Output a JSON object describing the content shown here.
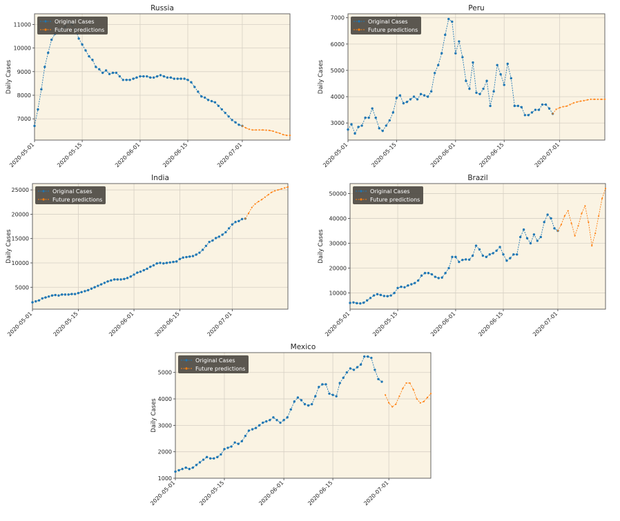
{
  "chart_data": [
    {
      "id": "russia",
      "type": "line",
      "title": "Russia",
      "ylabel": "Daily Cases",
      "xlabel": "",
      "x_start": "2020-05-01",
      "xticks": [
        "2020-05-01",
        "2020-05-15",
        "2020-06-01",
        "2020-06-15",
        "2020-07-01"
      ],
      "yticks": [
        7000,
        8000,
        9000,
        10000,
        11000
      ],
      "ylim": [
        6100,
        11450
      ],
      "grid": true,
      "legend": "top-left",
      "series": [
        {
          "name": "Original Cases",
          "color": "#1f77b4",
          "values": [
            6700,
            7400,
            8250,
            9200,
            9800,
            10350,
            10600,
            10700,
            10800,
            10900,
            11100,
            11000,
            10800,
            10400,
            10150,
            9900,
            9650,
            9500,
            9200,
            9100,
            8950,
            9050,
            8900,
            8950,
            8950,
            8800,
            8650,
            8650,
            8650,
            8700,
            8750,
            8800,
            8800,
            8800,
            8750,
            8750,
            8800,
            8850,
            8800,
            8750,
            8750,
            8700,
            8700,
            8700,
            8700,
            8650,
            8550,
            8350,
            8150,
            7950,
            7900,
            7800,
            7750,
            7700,
            7550,
            7400,
            7250,
            7100,
            6950,
            6850,
            6750,
            6700
          ]
        },
        {
          "name": "Future predictions",
          "color": "#ff7f0e",
          "start_index": 61,
          "values": [
            6700,
            6620,
            6560,
            6530,
            6530,
            6530,
            6530,
            6520,
            6510,
            6480,
            6430,
            6390,
            6330,
            6300,
            6300
          ]
        }
      ]
    },
    {
      "id": "peru",
      "type": "line",
      "title": "Peru",
      "ylabel": "Daily Cases",
      "xlabel": "",
      "x_start": "2020-05-01",
      "xticks": [
        "2020-05-01",
        "2020-05-15",
        "2020-06-01",
        "2020-06-15",
        "2020-07-01"
      ],
      "yticks": [
        3000,
        4000,
        5000,
        6000,
        7000
      ],
      "ylim": [
        2350,
        7150
      ],
      "grid": true,
      "legend": "top-left",
      "series": [
        {
          "name": "Original Cases",
          "color": "#1f77b4",
          "values": [
            2750,
            2950,
            2600,
            2850,
            2900,
            3200,
            3200,
            3550,
            3200,
            2800,
            2700,
            2900,
            3100,
            3400,
            3950,
            4050,
            3750,
            3800,
            3900,
            4000,
            3900,
            4100,
            4050,
            4000,
            4200,
            4900,
            5200,
            5650,
            6350,
            6950,
            6850,
            5650,
            6100,
            5500,
            4600,
            4300,
            5300,
            4150,
            4100,
            4300,
            4600,
            3650,
            4200,
            5200,
            4850,
            4450,
            5250,
            4700,
            3650,
            3650,
            3600,
            3300,
            3300,
            3400,
            3500,
            3500,
            3700,
            3700,
            3550,
            3350
          ]
        },
        {
          "name": "Future predictions",
          "color": "#ff7f0e",
          "start_index": 59,
          "values": [
            3350,
            3520,
            3580,
            3620,
            3640,
            3700,
            3760,
            3800,
            3830,
            3850,
            3880,
            3900,
            3900,
            3900,
            3900,
            3900
          ]
        }
      ]
    },
    {
      "id": "india",
      "type": "line",
      "title": "India",
      "ylabel": "Daily Cases",
      "xlabel": "",
      "x_start": "2020-05-01",
      "xticks": [
        "2020-05-01",
        "2020-05-15",
        "2020-06-01",
        "2020-06-15",
        "2020-07-01"
      ],
      "yticks": [
        5000,
        10000,
        15000,
        20000,
        25000
      ],
      "ylim": [
        500,
        26300
      ],
      "grid": true,
      "legend": "top-left",
      "series": [
        {
          "name": "Original Cases",
          "color": "#1f77b4",
          "values": [
            1900,
            2100,
            2300,
            2700,
            2900,
            3100,
            3300,
            3400,
            3300,
            3500,
            3500,
            3500,
            3600,
            3600,
            3800,
            4000,
            4200,
            4400,
            4700,
            5000,
            5300,
            5600,
            5900,
            6200,
            6400,
            6600,
            6600,
            6600,
            6700,
            6900,
            7200,
            7600,
            8000,
            8200,
            8500,
            8800,
            9200,
            9500,
            9900,
            10000,
            9900,
            10000,
            10100,
            10200,
            10300,
            10800,
            11100,
            11200,
            11300,
            11400,
            11700,
            12100,
            12700,
            13500,
            14300,
            14600,
            15100,
            15400,
            15800,
            16300,
            17100,
            17900,
            18400,
            18600,
            19000,
            19100
          ]
        },
        {
          "name": "Future predictions",
          "color": "#ff7f0e",
          "start_index": 65,
          "values": [
            19100,
            20200,
            21400,
            22100,
            22600,
            23000,
            23500,
            24000,
            24500,
            24800,
            25000,
            25200,
            25400,
            25600
          ]
        }
      ]
    },
    {
      "id": "brazil",
      "type": "line",
      "title": "Brazil",
      "ylabel": "Daily Cases",
      "xlabel": "",
      "x_start": "2020-05-01",
      "xticks": [
        "2020-05-01",
        "2020-05-15",
        "2020-06-01",
        "2020-06-15",
        "2020-07-01"
      ],
      "yticks": [
        10000,
        20000,
        30000,
        40000,
        50000
      ],
      "ylim": [
        3500,
        54000
      ],
      "grid": true,
      "legend": "top-left",
      "series": [
        {
          "name": "Original Cases",
          "color": "#1f77b4",
          "values": [
            6000,
            6200,
            5900,
            5800,
            6100,
            7000,
            8000,
            9000,
            9500,
            9200,
            8800,
            8700,
            9000,
            10000,
            12000,
            12500,
            12300,
            13000,
            13500,
            14000,
            15000,
            17000,
            18000,
            18000,
            17500,
            16500,
            16000,
            16200,
            18000,
            20000,
            24500,
            24500,
            22500,
            23300,
            23500,
            23400,
            25000,
            29000,
            27500,
            25000,
            24500,
            25500,
            26000,
            27000,
            28500,
            25500,
            23000,
            24000,
            25500,
            25500,
            32500,
            35500,
            32000,
            30000,
            33500,
            31000,
            32500,
            38500,
            41500,
            40000,
            36000,
            35000
          ]
        },
        {
          "name": "Future predictions",
          "color": "#ff7f0e",
          "start_index": 61,
          "values": [
            35000,
            37500,
            41000,
            43000,
            38000,
            33000,
            37000,
            42000,
            45000,
            38500,
            29000,
            34000,
            41000,
            48000,
            52000
          ]
        }
      ]
    },
    {
      "id": "mexico",
      "type": "line",
      "title": "Mexico",
      "ylabel": "Daily Cases",
      "xlabel": "",
      "x_start": "2020-05-01",
      "xticks": [
        "2020-05-01",
        "2020-05-15",
        "2020-06-01",
        "2020-06-15",
        "2020-07-01"
      ],
      "yticks": [
        1000,
        2000,
        3000,
        4000,
        5000
      ],
      "ylim": [
        1000,
        5750
      ],
      "grid": true,
      "legend": "top-left",
      "series": [
        {
          "name": "Original Cases",
          "color": "#1f77b4",
          "values": [
            1250,
            1300,
            1350,
            1400,
            1350,
            1400,
            1500,
            1600,
            1700,
            1800,
            1750,
            1750,
            1800,
            1900,
            2100,
            2150,
            2200,
            2350,
            2300,
            2400,
            2600,
            2800,
            2850,
            2900,
            3000,
            3100,
            3150,
            3200,
            3300,
            3200,
            3100,
            3200,
            3300,
            3600,
            3900,
            4050,
            3950,
            3800,
            3750,
            3800,
            4100,
            4450,
            4550,
            4550,
            4200,
            4150,
            4100,
            4600,
            4800,
            5000,
            5150,
            5100,
            5200,
            5300,
            5600,
            5600,
            5550,
            5100,
            4750,
            4650
          ]
        },
        {
          "name": "Future predictions",
          "color": "#ff7f0e",
          "start_index": 60,
          "values": [
            4150,
            3850,
            3700,
            3800,
            4100,
            4400,
            4600,
            4600,
            4350,
            4000,
            3850,
            3900,
            4050,
            4200
          ]
        }
      ]
    }
  ]
}
